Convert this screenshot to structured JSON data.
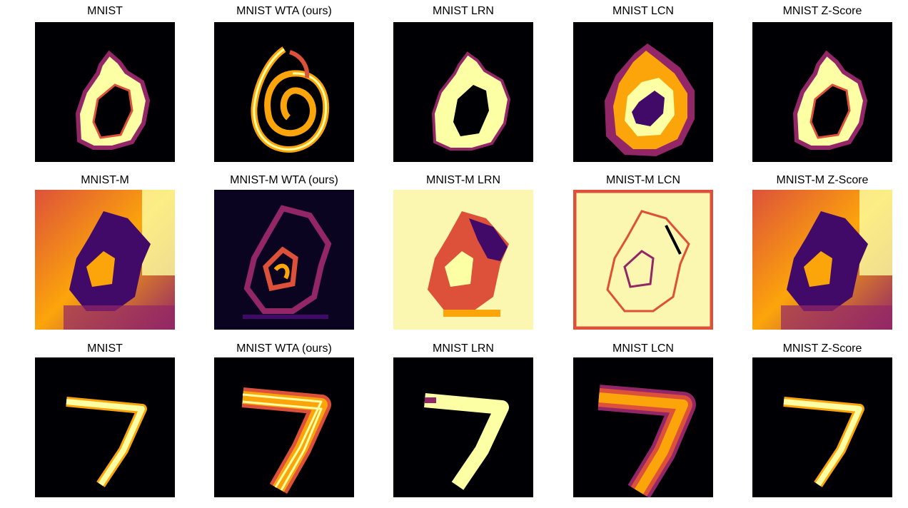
{
  "figure": {
    "rows": [
      {
        "panels": [
          {
            "title": "MNIST"
          },
          {
            "title": "MNIST WTA (ours)"
          },
          {
            "title": "MNIST LRN"
          },
          {
            "title": "MNIST LCN"
          },
          {
            "title": "MNIST Z-Score"
          }
        ]
      },
      {
        "panels": [
          {
            "title": "MNIST-M"
          },
          {
            "title": "MNIST-M WTA (ours)"
          },
          {
            "title": "MNIST-M LRN"
          },
          {
            "title": "MNIST-M LCN"
          },
          {
            "title": "MNIST-M Z-Score"
          }
        ]
      },
      {
        "panels": [
          {
            "title": "MNIST"
          },
          {
            "title": "MNIST WTA (ours)"
          },
          {
            "title": "MNIST LRN"
          },
          {
            "title": "MNIST LCN"
          },
          {
            "title": "MNIST Z-Score"
          }
        ]
      }
    ],
    "colormap": [
      "#000004",
      "#420a68",
      "#932667",
      "#dd513a",
      "#fca50a",
      "#fcffa4"
    ]
  }
}
